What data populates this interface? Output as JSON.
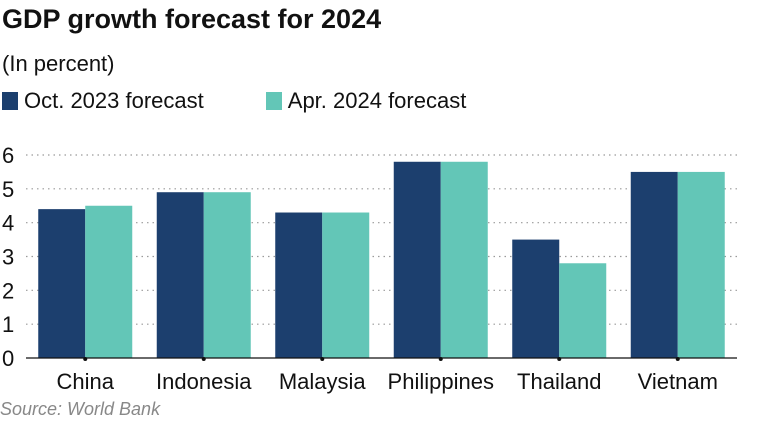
{
  "title": "GDP growth forecast for 2024",
  "subtitle": "(In percent)",
  "source": "Source: World Bank",
  "chart_data": {
    "type": "bar",
    "title": "GDP growth forecast for 2024",
    "subtitle": "(In percent)",
    "categories": [
      "China",
      "Indonesia",
      "Malaysia",
      "Philippines",
      "Thailand",
      "Vietnam"
    ],
    "series": [
      {
        "name": "Oct. 2023 forecast",
        "color": "#1c3f6e",
        "values": [
          4.4,
          4.9,
          4.3,
          5.8,
          3.5,
          5.5
        ]
      },
      {
        "name": "Apr. 2024 forecast",
        "color": "#63c6b7",
        "values": [
          4.5,
          4.9,
          4.3,
          5.8,
          2.8,
          5.5
        ]
      }
    ],
    "ylim": [
      0,
      6
    ],
    "yticks": [
      "0",
      "1",
      "2",
      "3",
      "4",
      "5",
      "6"
    ],
    "grid": true,
    "legend_position": "top-left"
  }
}
